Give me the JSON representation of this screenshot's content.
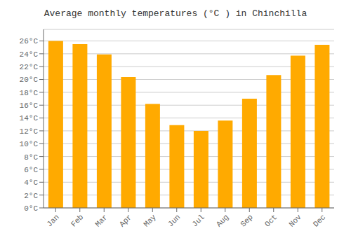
{
  "chart_data": {
    "type": "bar",
    "title": "Average monthly temperatures (°C ) in Chinchilla",
    "categories": [
      "Jan",
      "Feb",
      "Mar",
      "Apr",
      "May",
      "Jun",
      "Jul",
      "Aug",
      "Sep",
      "Oct",
      "Nov",
      "Dec"
    ],
    "values": [
      26.0,
      25.5,
      23.9,
      20.4,
      16.2,
      12.9,
      12.0,
      13.6,
      17.0,
      20.7,
      23.7,
      25.4
    ],
    "color": "#FFAA00",
    "ylim": [
      0,
      27.8
    ],
    "yticks": [
      {
        "value": 0,
        "label": "0°C"
      },
      {
        "value": 2,
        "label": "2°C"
      },
      {
        "value": 4,
        "label": "4°C"
      },
      {
        "value": 6,
        "label": "6°C"
      },
      {
        "value": 8,
        "label": "8°C"
      },
      {
        "value": 10,
        "label": "10°C"
      },
      {
        "value": 12,
        "label": "12°C"
      },
      {
        "value": 14,
        "label": "14°C"
      },
      {
        "value": 16,
        "label": "16°C"
      },
      {
        "value": 18,
        "label": "18°C"
      },
      {
        "value": 20,
        "label": "20°C"
      },
      {
        "value": 22,
        "label": "22°C"
      },
      {
        "value": 24,
        "label": "24°C"
      },
      {
        "value": 26,
        "label": "26°C"
      }
    ],
    "grid": true
  }
}
